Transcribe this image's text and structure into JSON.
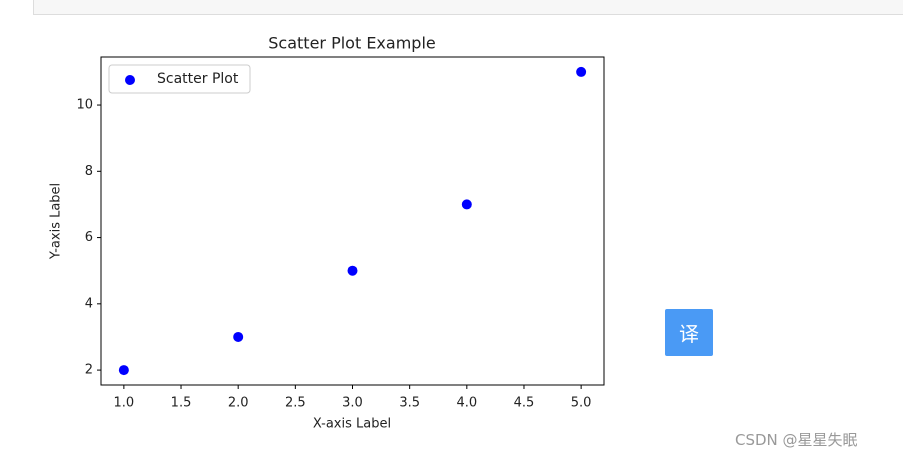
{
  "chart_data": {
    "type": "scatter",
    "title": "Scatter Plot Example",
    "x_label": "X-axis Label",
    "y_label": "Y-axis Label",
    "series": [
      {
        "name": "Scatter Plot",
        "color": "#0000ff",
        "x": [
          1,
          2,
          3,
          4,
          5
        ],
        "values": [
          2,
          3,
          5,
          7,
          11
        ]
      }
    ],
    "xlim": [
      0.8,
      5.2
    ],
    "ylim": [
      1.55,
      11.45
    ],
    "xticks": [
      {
        "value": 1,
        "label": "1.0"
      },
      {
        "value": 1.5,
        "label": "1.5"
      },
      {
        "value": 2,
        "label": "2.0"
      },
      {
        "value": 2.5,
        "label": "2.5"
      },
      {
        "value": 3,
        "label": "3.0"
      },
      {
        "value": 3.5,
        "label": "3.5"
      },
      {
        "value": 4,
        "label": "4.0"
      },
      {
        "value": 4.5,
        "label": "4.5"
      },
      {
        "value": 5,
        "label": "5.0"
      }
    ],
    "yticks": [
      2,
      4,
      6,
      8,
      10
    ],
    "grid": false,
    "legend": "upper-left"
  },
  "translate_button": "译",
  "watermark": "CSDN @星星失眠"
}
